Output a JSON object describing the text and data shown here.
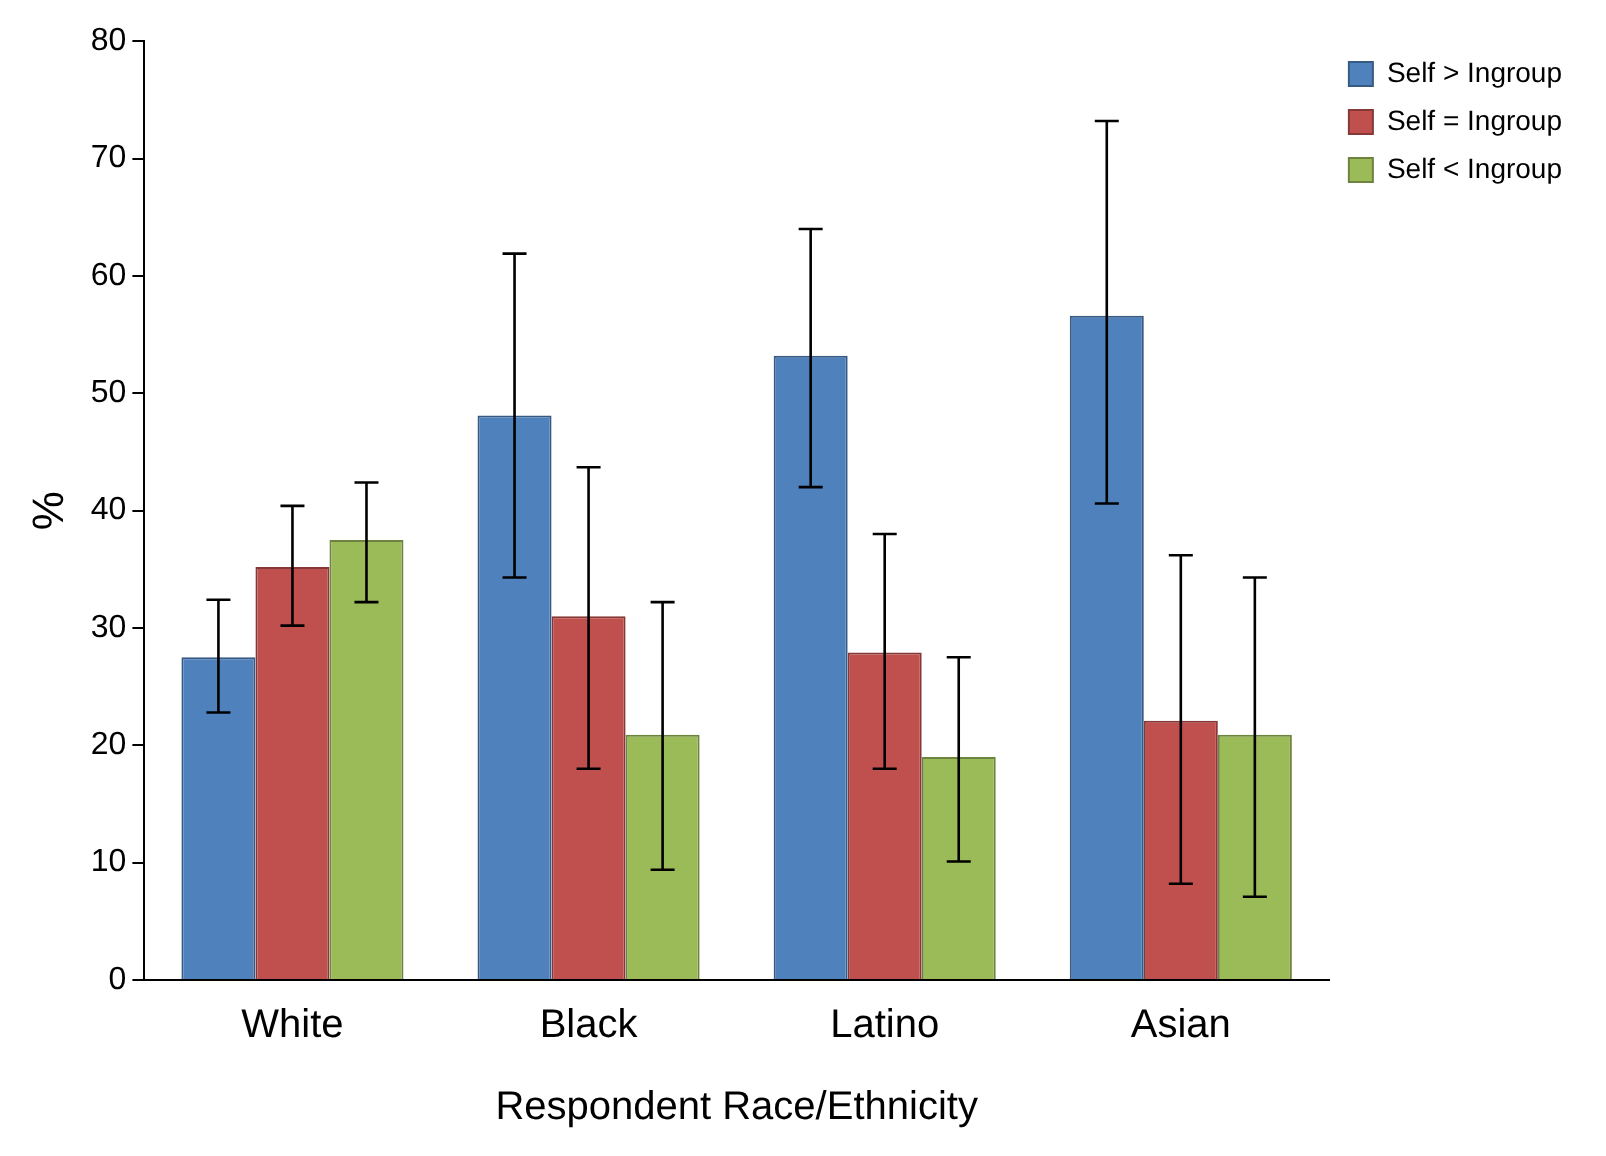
{
  "chart_data": {
    "type": "bar",
    "xlabel": "Respondent Race/Ethnicity",
    "ylabel": "%",
    "categories": [
      "White",
      "Black",
      "Latino",
      "Asian"
    ],
    "series": [
      {
        "name": "Self > Ingroup",
        "color": "#4f81bd",
        "values": [
          27.5,
          48.1,
          53.2,
          56.6
        ],
        "errors": [
          [
            22.8,
            32.4
          ],
          [
            34.3,
            61.9
          ],
          [
            42,
            64
          ],
          [
            40.6,
            73.2
          ]
        ]
      },
      {
        "name": "Self = Ingroup",
        "color": "#c0504d",
        "values": [
          35.2,
          31,
          27.9,
          22.1
        ],
        "errors": [
          [
            30.2,
            40.4
          ],
          [
            18,
            43.7
          ],
          [
            18,
            38
          ],
          [
            8.2,
            36.2
          ]
        ]
      },
      {
        "name": "Self < Ingroup",
        "color": "#9bbb59",
        "values": [
          37.5,
          20.9,
          19,
          20.9
        ],
        "errors": [
          [
            32.2,
            42.4
          ],
          [
            9.4,
            32.2
          ],
          [
            10.1,
            27.5
          ],
          [
            7.1,
            34.3
          ]
        ]
      }
    ],
    "ylim": [
      0,
      80
    ],
    "yticks": [
      0,
      10,
      20,
      30,
      40,
      50,
      60,
      70,
      80
    ],
    "grid": false,
    "legend": "top right"
  }
}
